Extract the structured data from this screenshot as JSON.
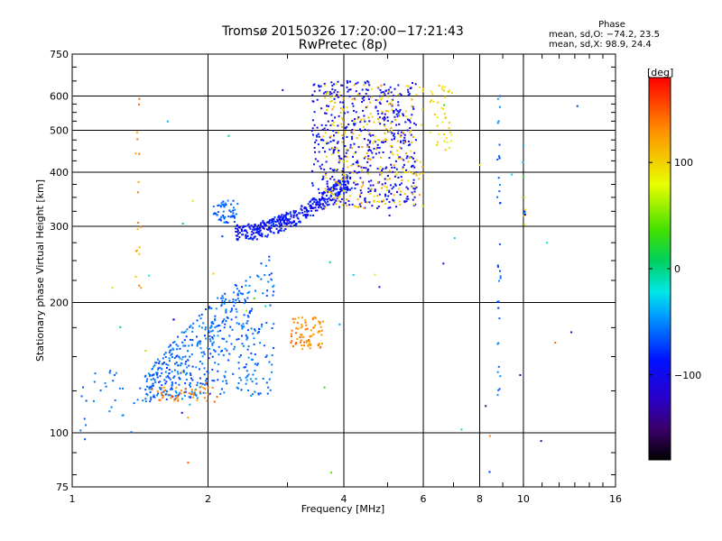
{
  "chart_data": {
    "type": "scatter",
    "title": "Tromsø 20150326 17:20:00−17:21:43",
    "subtitle": "RwPretec (8p)",
    "xlabel": "Frequency [MHz]",
    "ylabel": "Stationary phase Virtual Height [km]",
    "xscale": "log",
    "yscale": "log",
    "xlim": [
      1,
      16
    ],
    "ylim": [
      75,
      750
    ],
    "xticks": [
      1,
      2,
      4,
      6,
      8,
      10,
      16
    ],
    "xtick_labels": [
      "1",
      "2",
      "4",
      "6",
      "8",
      "10",
      "16"
    ],
    "yticks": [
      75,
      100,
      200,
      300,
      400,
      500,
      600,
      750
    ],
    "ytick_labels": [
      "75",
      "100",
      "200",
      "300",
      "400",
      "500",
      "600",
      "750"
    ],
    "grid": true,
    "colorbar": {
      "label": "[deg]",
      "range": [
        -180,
        180
      ],
      "ticks": [
        -100,
        0,
        100
      ],
      "tick_labels": [
        "−100",
        "0",
        "100"
      ]
    },
    "phase_stats": {
      "header": "Phase",
      "o_line": "mean, sd,O: −74.2, 23.5",
      "x_line": "mean, sd,X: 98.9, 24.4"
    },
    "clusters": [
      {
        "name": "E-layer cyan",
        "f": [
          1.45,
          2.8
        ],
        "h": [
          118,
          240
        ],
        "n": 520,
        "phase": [
          -75,
          -45
        ]
      },
      {
        "name": "E-layer cut orange",
        "f": [
          1.5,
          2.1
        ],
        "h": [
          118,
          128
        ],
        "n": 45,
        "phase": [
          110,
          150
        ]
      },
      {
        "name": "low trace",
        "f": [
          1.0,
          1.45
        ],
        "h": [
          96,
          140
        ],
        "n": 30,
        "phase": [
          -70,
          -45
        ]
      },
      {
        "name": "Es cyan",
        "f": [
          2.05,
          2.35
        ],
        "h": [
          305,
          345
        ],
        "n": 60,
        "phase": [
          -75,
          -50
        ]
      },
      {
        "name": "F trace O",
        "f": [
          2.3,
          4.1
        ],
        "h": [
          290,
          380
        ],
        "n": 420,
        "phase": [
          -110,
          -70
        ]
      },
      {
        "name": "F upper O",
        "f": [
          3.4,
          5.8
        ],
        "h": [
          330,
          650
        ],
        "n": 520,
        "phase": [
          -115,
          -80
        ]
      },
      {
        "name": "F X orange/yellow",
        "f": [
          3.6,
          6.0
        ],
        "h": [
          330,
          640
        ],
        "n": 260,
        "phase": [
          85,
          125
        ]
      },
      {
        "name": "mid orange blob",
        "f": [
          3.05,
          3.6
        ],
        "h": [
          155,
          185
        ],
        "n": 80,
        "phase": [
          115,
          150
        ]
      },
      {
        "name": "vert line 1.4",
        "f": [
          1.38,
          1.42
        ],
        "h": [
          210,
          600
        ],
        "n": 18,
        "phase": [
          100,
          150
        ]
      },
      {
        "name": "vert line 8.8",
        "f": [
          8.75,
          8.9
        ],
        "h": [
          120,
          620
        ],
        "n": 35,
        "phase": [
          -80,
          -40
        ]
      },
      {
        "name": "vert line 10",
        "f": [
          9.95,
          10.1
        ],
        "h": [
          300,
          520
        ],
        "n": 10,
        "phase": [
          -110,
          130
        ]
      },
      {
        "name": "scatter high",
        "f": [
          6.2,
          7.0
        ],
        "h": [
          450,
          640
        ],
        "n": 40,
        "phase": [
          80,
          110
        ]
      },
      {
        "name": "noise",
        "f": [
          1.2,
          14.0
        ],
        "h": [
          80,
          640
        ],
        "n": 45,
        "phase": [
          -150,
          150
        ]
      }
    ]
  }
}
